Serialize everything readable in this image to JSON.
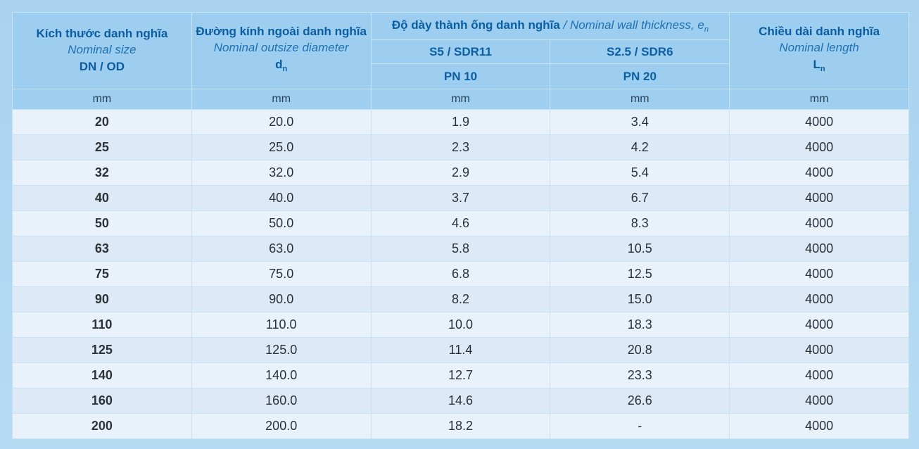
{
  "header": {
    "size": {
      "vi": "Kích thước danh nghĩa",
      "en": "Nominal size",
      "code": "DN / OD"
    },
    "diameter": {
      "vi": "Đường kính ngoài danh nghĩa",
      "en": "Nominal outsize diameter",
      "symbol": "d",
      "symbol_sub": "n"
    },
    "thickness": {
      "vi": "Độ dày thành ống danh nghĩa",
      "sep": " / ",
      "en": "Nominal wall thickness, e",
      "en_sub": "n"
    },
    "s5": {
      "label": "S5 / SDR11",
      "pn": "PN 10"
    },
    "s25": {
      "label": "S2.5 / SDR6",
      "pn": "PN 20"
    },
    "length": {
      "vi": "Chiều dài danh nghĩa",
      "en": "Nominal length",
      "symbol": "L",
      "symbol_sub": "n"
    }
  },
  "units": [
    "mm",
    "mm",
    "mm",
    "mm",
    "mm"
  ],
  "rows": [
    [
      "20",
      "20.0",
      "1.9",
      "3.4",
      "4000"
    ],
    [
      "25",
      "25.0",
      "2.3",
      "4.2",
      "4000"
    ],
    [
      "32",
      "32.0",
      "2.9",
      "5.4",
      "4000"
    ],
    [
      "40",
      "40.0",
      "3.7",
      "6.7",
      "4000"
    ],
    [
      "50",
      "50.0",
      "4.6",
      "8.3",
      "4000"
    ],
    [
      "63",
      "63.0",
      "5.8",
      "10.5",
      "4000"
    ],
    [
      "75",
      "75.0",
      "6.8",
      "12.5",
      "4000"
    ],
    [
      "90",
      "90.0",
      "8.2",
      "15.0",
      "4000"
    ],
    [
      "110",
      "110.0",
      "10.0",
      "18.3",
      "4000"
    ],
    [
      "125",
      "125.0",
      "11.4",
      "20.8",
      "4000"
    ],
    [
      "140",
      "140.0",
      "12.7",
      "23.3",
      "4000"
    ],
    [
      "160",
      "160.0",
      "14.6",
      "26.6",
      "4000"
    ],
    [
      "200",
      "200.0",
      "18.2",
      "-",
      "4000"
    ]
  ]
}
